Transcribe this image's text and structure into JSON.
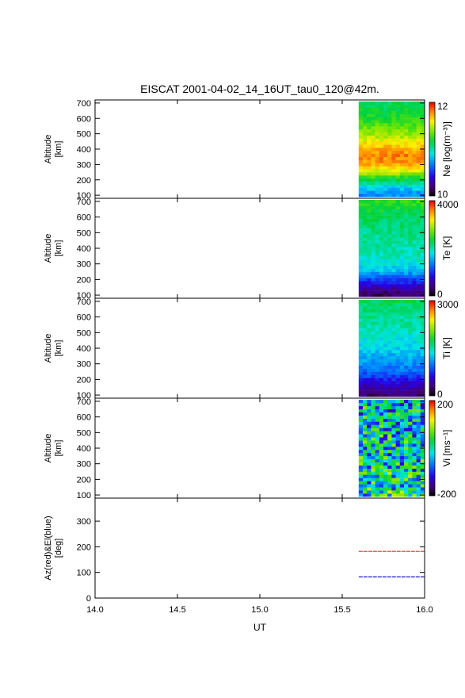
{
  "title": "EISCAT 2001-04-02_14_16UT_tau0_120@42m.",
  "xlabel": "UT",
  "x_ticks": [
    "14.0",
    "14.5",
    "15.0",
    "15.5",
    "16.0"
  ],
  "x_range": [
    14.0,
    16.0
  ],
  "data_start_ut": 15.6,
  "chart_data": [
    {
      "type": "heatmap",
      "ylabel_lines": [
        "Altitude",
        "[km]"
      ],
      "yticks": [
        100,
        200,
        300,
        400,
        500,
        600,
        700
      ],
      "ylim": [
        80,
        720
      ],
      "colorbar_label": "Ne [log(m⁻³)]",
      "colorbar_ticks": [
        "12",
        "10"
      ],
      "value_range": [
        10,
        12
      ],
      "profile": [
        {
          "alt": 100,
          "value": 10.7
        },
        {
          "alt": 150,
          "value": 10.9
        },
        {
          "alt": 200,
          "value": 11.2
        },
        {
          "alt": 250,
          "value": 11.55
        },
        {
          "alt": 300,
          "value": 11.75
        },
        {
          "alt": 350,
          "value": 11.8
        },
        {
          "alt": 400,
          "value": 11.7
        },
        {
          "alt": 450,
          "value": 11.55
        },
        {
          "alt": 500,
          "value": 11.4
        },
        {
          "alt": 550,
          "value": 11.3
        },
        {
          "alt": 600,
          "value": 11.2
        },
        {
          "alt": 650,
          "value": 11.15
        },
        {
          "alt": 700,
          "value": 11.1
        }
      ]
    },
    {
      "type": "heatmap",
      "ylabel_lines": [
        "Altitude",
        "[km]"
      ],
      "yticks": [
        100,
        200,
        300,
        400,
        500,
        600,
        700
      ],
      "ylim": [
        80,
        720
      ],
      "colorbar_label": "Te [K]",
      "colorbar_ticks": [
        "4000",
        "0"
      ],
      "value_range": [
        0,
        4000
      ],
      "profile": [
        {
          "alt": 100,
          "value": 300
        },
        {
          "alt": 150,
          "value": 700
        },
        {
          "alt": 200,
          "value": 1200
        },
        {
          "alt": 250,
          "value": 1650
        },
        {
          "alt": 300,
          "value": 1850
        },
        {
          "alt": 400,
          "value": 2000
        },
        {
          "alt": 500,
          "value": 2100
        },
        {
          "alt": 600,
          "value": 2250
        },
        {
          "alt": 700,
          "value": 2500
        }
      ]
    },
    {
      "type": "heatmap",
      "ylabel_lines": [
        "Altitude",
        "[km]"
      ],
      "yticks": [
        100,
        200,
        300,
        400,
        500,
        600,
        700
      ],
      "ylim": [
        80,
        720
      ],
      "colorbar_label": "Ti [K]",
      "colorbar_ticks": [
        "3000",
        "0"
      ],
      "value_range": [
        0,
        3000
      ],
      "profile": [
        {
          "alt": 100,
          "value": 250
        },
        {
          "alt": 150,
          "value": 450
        },
        {
          "alt": 200,
          "value": 750
        },
        {
          "alt": 250,
          "value": 950
        },
        {
          "alt": 300,
          "value": 1100
        },
        {
          "alt": 400,
          "value": 1300
        },
        {
          "alt": 500,
          "value": 1450
        },
        {
          "alt": 600,
          "value": 1550
        },
        {
          "alt": 700,
          "value": 1700
        }
      ]
    },
    {
      "type": "heatmap",
      "ylabel_lines": [
        "Altitude",
        "[km]"
      ],
      "yticks": [
        100,
        200,
        300,
        400,
        500,
        600,
        700
      ],
      "ylim": [
        80,
        720
      ],
      "colorbar_label": "Vi [ms⁻¹]",
      "colorbar_ticks": [
        "200",
        "-200"
      ],
      "value_range": [
        -200,
        200
      ],
      "profile": [
        {
          "alt": 100,
          "value": 0
        },
        {
          "alt": 400,
          "value": -20
        },
        {
          "alt": 700,
          "value": -30
        }
      ]
    },
    {
      "type": "line",
      "ylabel_lines": [
        "Az(red)&El(blue)",
        "[deg]"
      ],
      "yticks": [
        0,
        100,
        200,
        300
      ],
      "ylim": [
        0,
        390
      ],
      "series": [
        {
          "color": "#ff2000",
          "x": [
            15.6,
            16.0
          ],
          "y": [
            182,
            182
          ]
        },
        {
          "color": "#0000cc",
          "x": [
            15.6,
            16.0
          ],
          "y": [
            83,
            83
          ]
        }
      ]
    }
  ]
}
